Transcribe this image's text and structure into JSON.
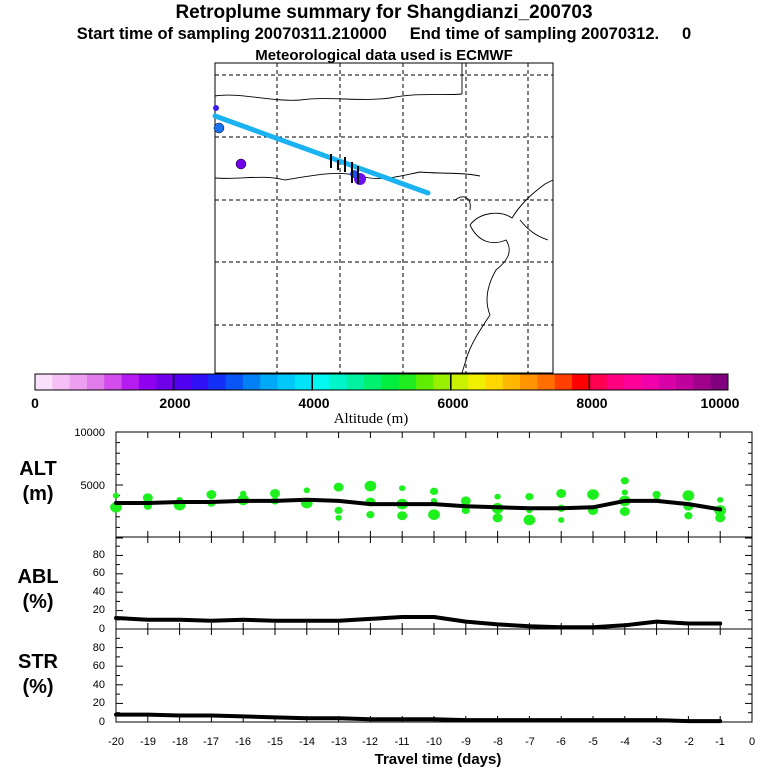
{
  "header": {
    "title": "Retroplume summary for Shangdianzi_200703",
    "subtitle": "Start time of sampling 20070311.210000     End time of sampling 20070312.     0",
    "met_line": "Meteorological data used is ECMWF"
  },
  "colorbar": {
    "label": "Altitude (m)",
    "ticks": [
      "0",
      "2000",
      "4000",
      "6000",
      "8000",
      "10000"
    ],
    "colors": [
      "#fbe0fb",
      "#f5c0f5",
      "#eda0f0",
      "#e27ceb",
      "#d44cec",
      "#b41cf0",
      "#8f00f0",
      "#7000e8",
      "#5200f0",
      "#3010f5",
      "#1430f8",
      "#0a55f5",
      "#0080f5",
      "#00a8f8",
      "#00c8fa",
      "#00e4fa",
      "#00f8f0",
      "#00f5c8",
      "#00f2a0",
      "#00f070",
      "#00ee40",
      "#20ec20",
      "#60ee00",
      "#98f000",
      "#c8f200",
      "#f0f000",
      "#ffd800",
      "#ffb800",
      "#ff9400",
      "#ff6e00",
      "#ff4000",
      "#ff0000",
      "#ff0050",
      "#ff0080",
      "#ff0098",
      "#f000a8",
      "#d800a8",
      "#c0009c",
      "#a0008c",
      "#800080"
    ]
  },
  "panels": {
    "alt": {
      "label1": "ALT",
      "label2": "(m)",
      "ticks": [
        "10000",
        "5000"
      ]
    },
    "abl": {
      "label1": "ABL",
      "label2": "(%)",
      "ticks": [
        "80",
        "60",
        "40",
        "20",
        "0"
      ]
    },
    "str": {
      "label1": "STR",
      "label2": "(%)",
      "ticks": [
        "80",
        "60",
        "40",
        "20",
        "0"
      ]
    }
  },
  "xaxis": {
    "label": "Travel time (days)",
    "ticks": [
      "-20",
      "-19",
      "-18",
      "-17",
      "-16",
      "-15",
      "-14",
      "-13",
      "-12",
      "-11",
      "-10",
      "-9",
      "-8",
      "-7",
      "-6",
      "-5",
      "-4",
      "-3",
      "-2",
      "-1",
      "0"
    ]
  },
  "chart_data": {
    "type": "line",
    "x": [
      -20,
      -19,
      -18,
      -17,
      -16,
      -15,
      -14,
      -13,
      -12,
      -11,
      -10,
      -9,
      -8,
      -7,
      -6,
      -5,
      -4,
      -3,
      -2,
      -1
    ],
    "series": [
      {
        "name": "ALT (m)",
        "ylim": [
          0,
          10000
        ],
        "values": [
          3300,
          3300,
          3400,
          3400,
          3500,
          3500,
          3600,
          3500,
          3200,
          3200,
          3200,
          3000,
          2900,
          2800,
          2800,
          2900,
          3500,
          3500,
          3200,
          2700
        ]
      },
      {
        "name": "ABL (%)",
        "ylim": [
          0,
          100
        ],
        "values": [
          12,
          10,
          10,
          9,
          10,
          9,
          9,
          9,
          11,
          13,
          13,
          8,
          5,
          3,
          2,
          2,
          4,
          8,
          6,
          6
        ]
      },
      {
        "name": "STR (%)",
        "ylim": [
          0,
          100
        ],
        "values": [
          8,
          8,
          7,
          7,
          6,
          5,
          4,
          4,
          3,
          3,
          3,
          2,
          2,
          2,
          2,
          2,
          2,
          2,
          1,
          1
        ]
      }
    ],
    "alt_spread": [
      [
        -20,
        4000
      ],
      [
        -20,
        2900
      ],
      [
        -19,
        3800
      ],
      [
        -19,
        3000
      ],
      [
        -18,
        3600
      ],
      [
        -18,
        3100
      ],
      [
        -17,
        4100
      ],
      [
        -17,
        3300
      ],
      [
        -16,
        4200
      ],
      [
        -16,
        3600
      ],
      [
        -15,
        4200
      ],
      [
        -15,
        3500
      ],
      [
        -14,
        4500
      ],
      [
        -14,
        3300
      ],
      [
        -13,
        4800
      ],
      [
        -13,
        2600
      ],
      [
        -13,
        1900
      ],
      [
        -12,
        4900
      ],
      [
        -12,
        3400
      ],
      [
        -12,
        2200
      ],
      [
        -11,
        4700
      ],
      [
        -11,
        3200
      ],
      [
        -11,
        2100
      ],
      [
        -10,
        4400
      ],
      [
        -10,
        3500
      ],
      [
        -10,
        2200
      ],
      [
        -9,
        3500
      ],
      [
        -9,
        2600
      ],
      [
        -8,
        3900
      ],
      [
        -8,
        2800
      ],
      [
        -8,
        1900
      ],
      [
        -7,
        3900
      ],
      [
        -7,
        2600
      ],
      [
        -7,
        1700
      ],
      [
        -6,
        4200
      ],
      [
        -6,
        2800
      ],
      [
        -6,
        1700
      ],
      [
        -5,
        4100
      ],
      [
        -5,
        2600
      ],
      [
        -4,
        5400
      ],
      [
        -4,
        4300
      ],
      [
        -4,
        3500
      ],
      [
        -4,
        2500
      ],
      [
        -3,
        4100
      ],
      [
        -3,
        3600
      ],
      [
        -2,
        4000
      ],
      [
        -2,
        3000
      ],
      [
        -2,
        2100
      ],
      [
        -1,
        3600
      ],
      [
        -1,
        2600
      ],
      [
        -1,
        1900
      ]
    ],
    "xlabel": "Travel time (days)",
    "xlim": [
      -20,
      0
    ]
  }
}
